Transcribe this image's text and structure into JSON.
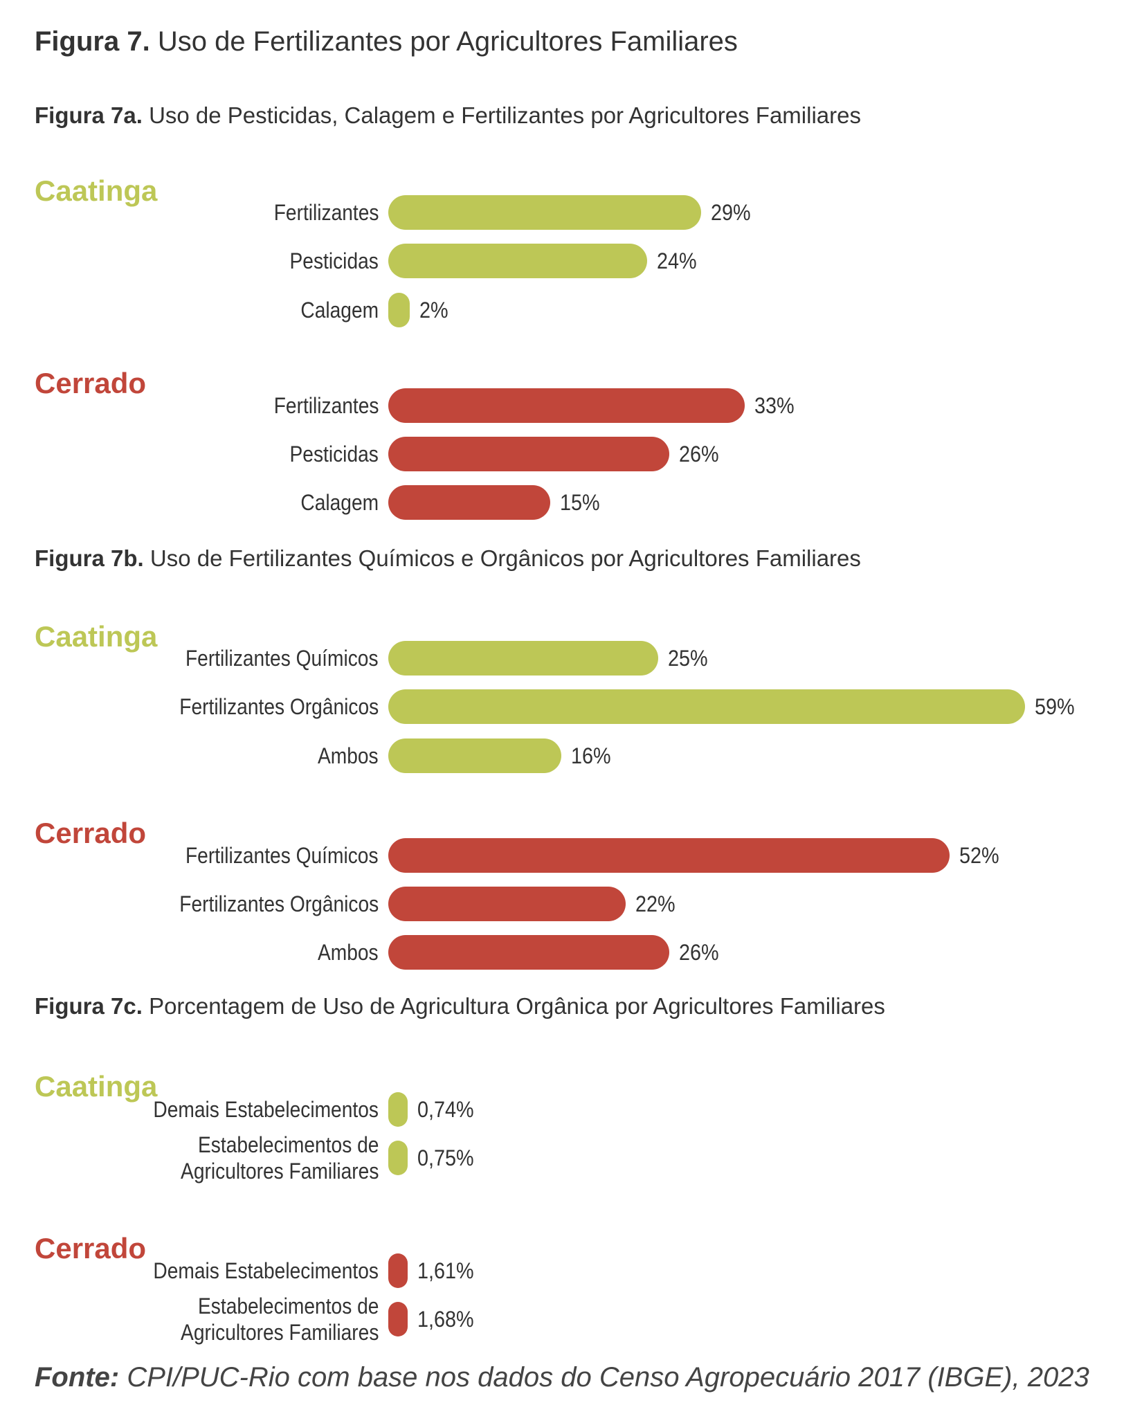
{
  "figure": {
    "label": "Figura 7.",
    "title": "Uso de Fertilizantes por Agricultores Familiares"
  },
  "colors": {
    "caatinga": "#bdc756",
    "cerrado": "#c1463a"
  },
  "chart_data": [
    {
      "type": "bar",
      "label": "Figura 7a.",
      "title": "Uso de Pesticidas, Calagem e Fertilizantes por Agricultores Familiares",
      "groups": [
        {
          "name": "Caatinga",
          "color": "caatinga",
          "items": [
            {
              "label": "Fertilizantes",
              "value": 29,
              "text": "29%"
            },
            {
              "label": "Pesticidas",
              "value": 24,
              "text": "24%"
            },
            {
              "label": "Calagem",
              "value": 2,
              "text": "2%"
            }
          ]
        },
        {
          "name": "Cerrado",
          "color": "cerrado",
          "items": [
            {
              "label": "Fertilizantes",
              "value": 33,
              "text": "33%"
            },
            {
              "label": "Pesticidas",
              "value": 26,
              "text": "26%"
            },
            {
              "label": "Calagem",
              "value": 15,
              "text": "15%"
            }
          ]
        }
      ]
    },
    {
      "type": "bar",
      "label": "Figura 7b.",
      "title": "Uso de Fertilizantes Químicos e Orgânicos por Agricultores Familiares",
      "groups": [
        {
          "name": "Caatinga",
          "color": "caatinga",
          "items": [
            {
              "label": "Fertilizantes Químicos",
              "value": 25,
              "text": "25%"
            },
            {
              "label": "Fertilizantes Orgânicos",
              "value": 59,
              "text": "59%"
            },
            {
              "label": "Ambos",
              "value": 16,
              "text": "16%"
            }
          ]
        },
        {
          "name": "Cerrado",
          "color": "cerrado",
          "items": [
            {
              "label": "Fertilizantes Químicos",
              "value": 52,
              "text": "52%"
            },
            {
              "label": "Fertilizantes Orgânicos",
              "value": 22,
              "text": "22%"
            },
            {
              "label": "Ambos",
              "value": 26,
              "text": "26%"
            }
          ]
        }
      ]
    },
    {
      "type": "bar",
      "label": "Figura 7c.",
      "title": "Porcentagem de Uso de Agricultura Orgânica por Agricultores Familiares",
      "groups": [
        {
          "name": "Caatinga",
          "color": "caatinga",
          "items": [
            {
              "label": "Demais Estabelecimentos",
              "value": 0.74,
              "text": "0,74%"
            },
            {
              "label": "Estabelecimentos de\nAgricultores Familiares",
              "value": 0.75,
              "text": "0,75%"
            }
          ]
        },
        {
          "name": "Cerrado",
          "color": "cerrado",
          "items": [
            {
              "label": "Demais Estabelecimentos",
              "value": 1.61,
              "text": "1,61%"
            },
            {
              "label": "Estabelecimentos de\nAgricultores Familiares",
              "value": 1.68,
              "text": "1,68%"
            }
          ]
        }
      ]
    }
  ],
  "source": {
    "label": "Fonte:",
    "text": "CPI/PUC-Rio com base nos dados do Censo Agropecuário 2017 (IBGE), 2023"
  }
}
